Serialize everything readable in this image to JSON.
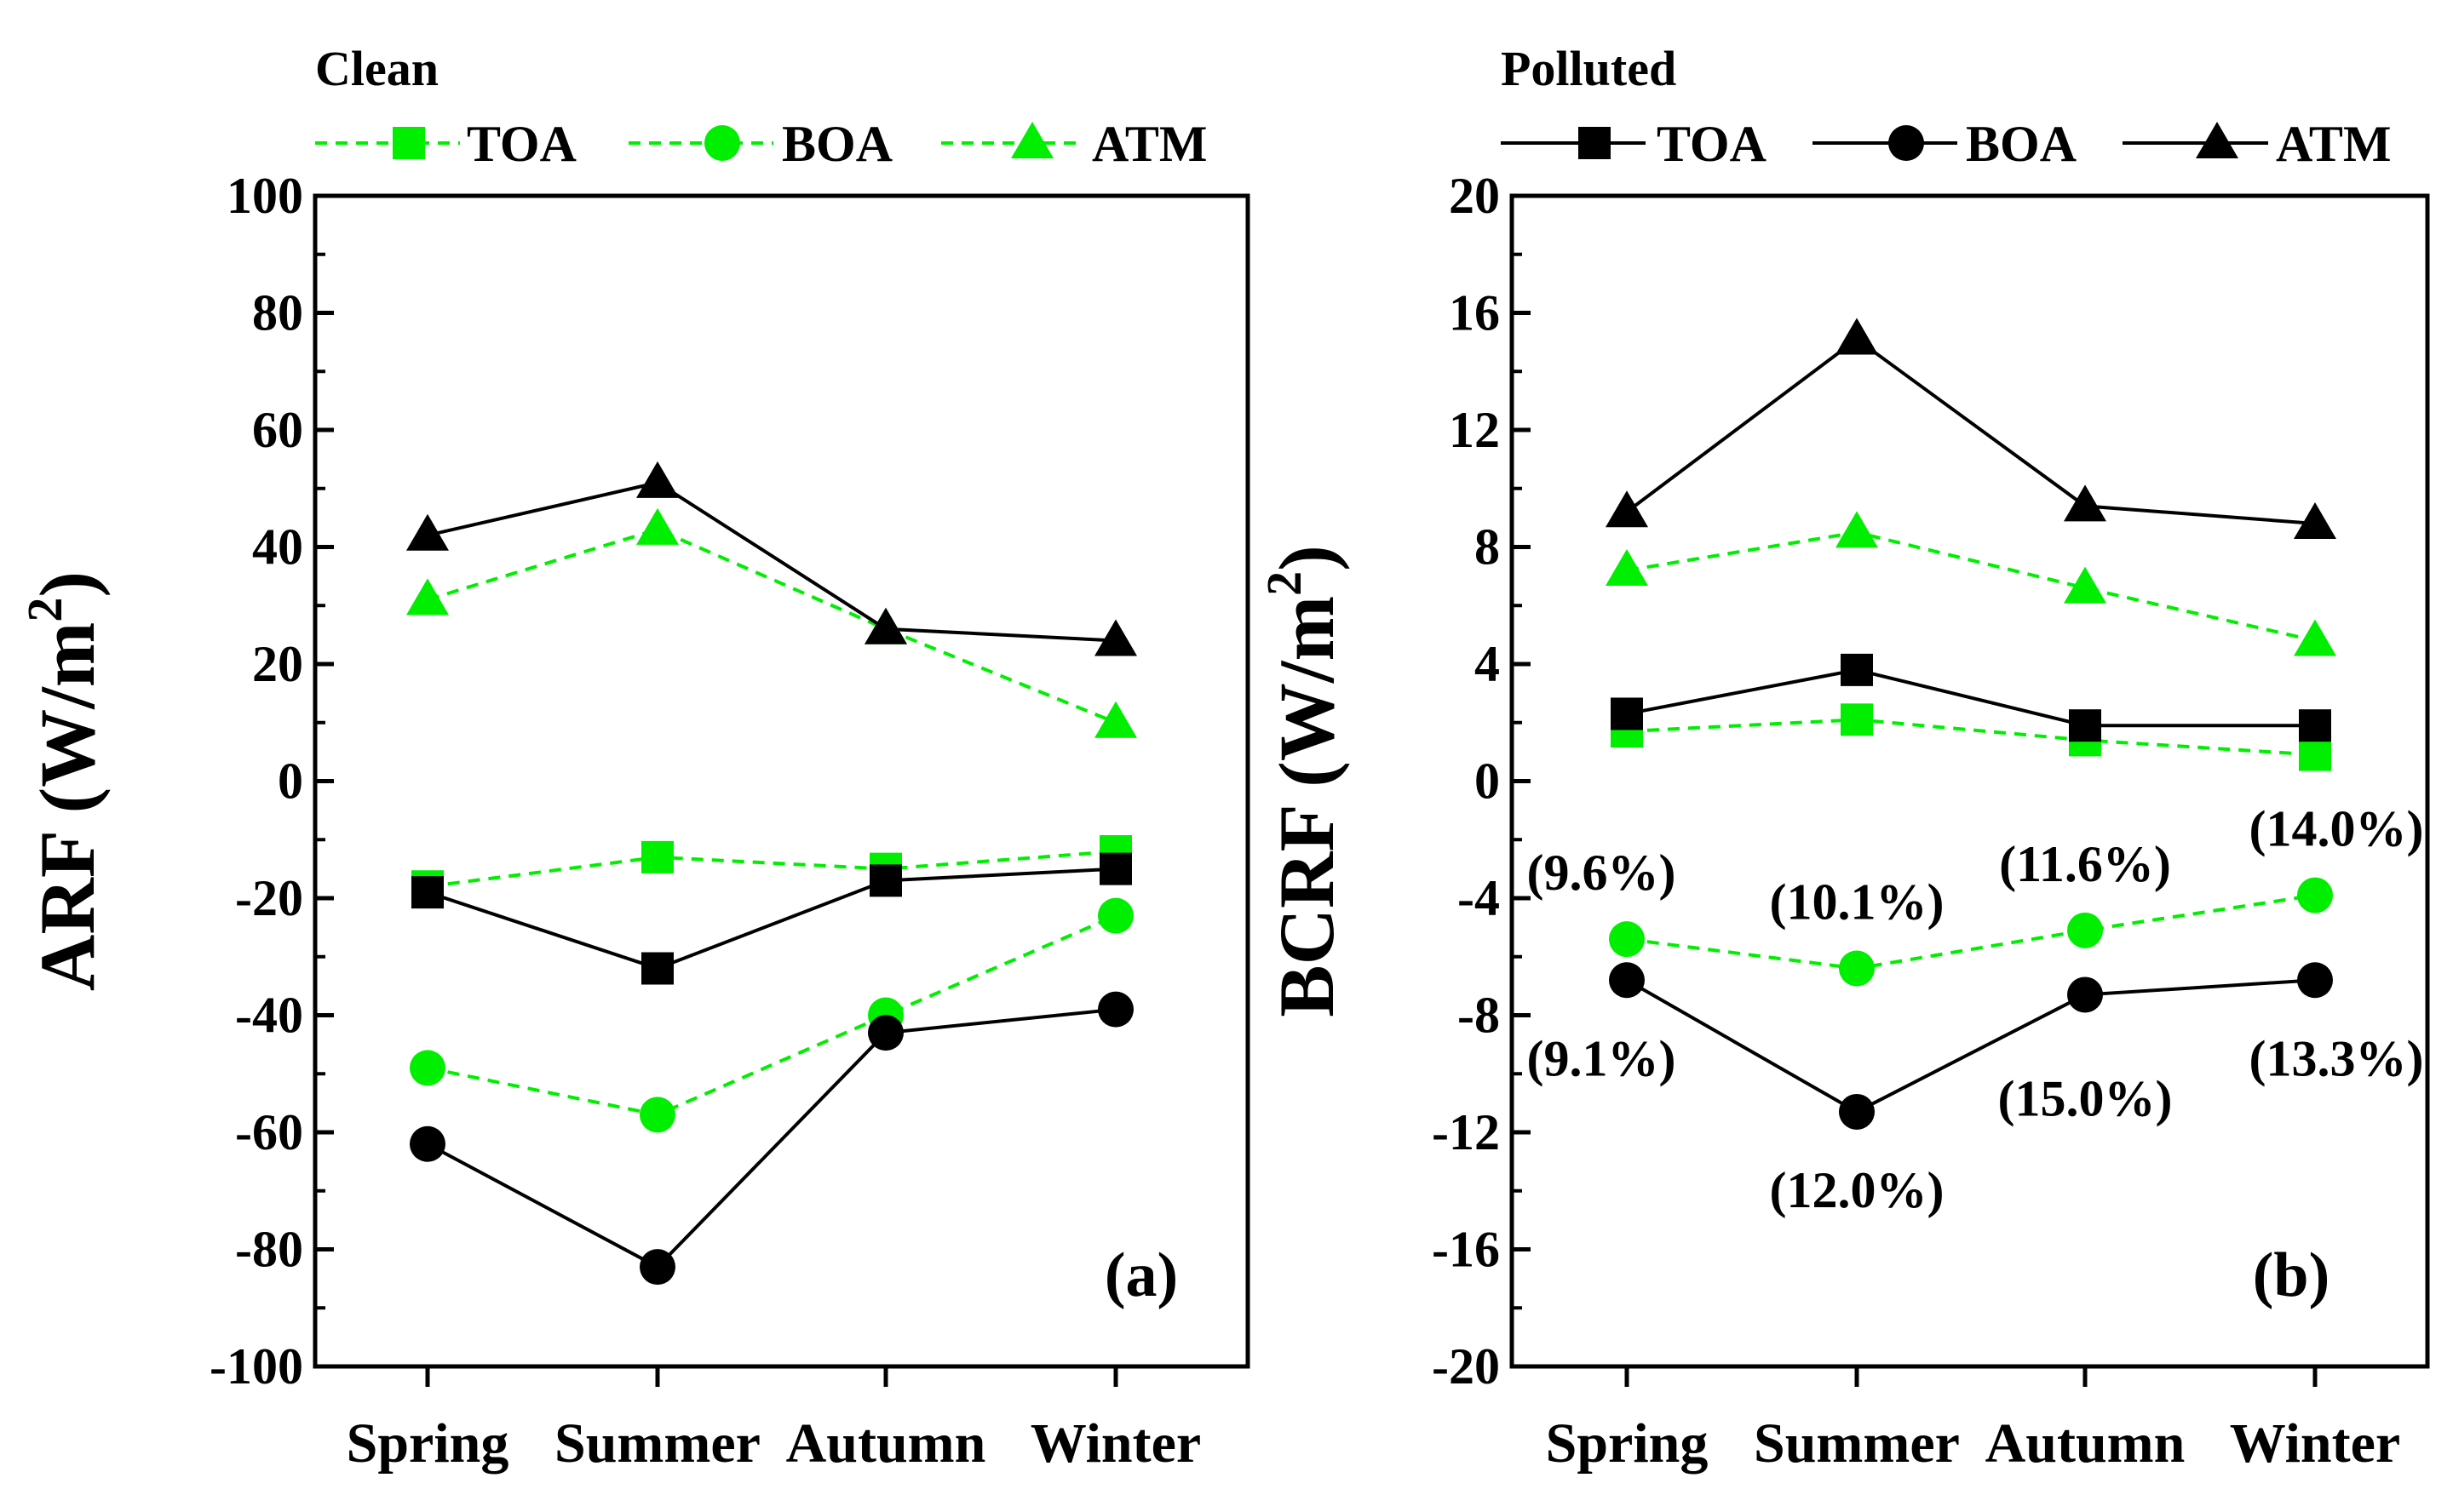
{
  "chart_data": [
    {
      "panel": "(a)",
      "type": "line",
      "title": "Clean",
      "ylabel": "ARF (W/m2)",
      "ylabel_base": "ARF (W/m",
      "ylabel_sup": "2",
      "ylabel_close": ")",
      "ylim": [
        -100,
        100
      ],
      "yticks": [
        "-100",
        "-80",
        "-60",
        "-40",
        "-20",
        "0",
        "20",
        "40",
        "60",
        "80",
        "100"
      ],
      "categories": [
        "Spring",
        "Summer",
        "Autumn",
        "Winter"
      ],
      "legend_title": "Clean",
      "legend": [
        "TOA",
        "BOA",
        "ATM"
      ],
      "legend_style": "clean",
      "series": [
        {
          "name": "TOA",
          "group": "clean",
          "marker": "square",
          "color": "#00ee00",
          "dashed": true,
          "values": [
            -18,
            -13,
            -15,
            -12
          ]
        },
        {
          "name": "BOA",
          "group": "clean",
          "marker": "circle",
          "color": "#00ee00",
          "dashed": true,
          "values": [
            -49,
            -57,
            -40,
            -23
          ]
        },
        {
          "name": "ATM",
          "group": "clean",
          "marker": "triangle",
          "color": "#00ee00",
          "dashed": true,
          "values": [
            31,
            43,
            26,
            10
          ]
        },
        {
          "name": "TOA",
          "group": "polluted",
          "marker": "square",
          "color": "#000000",
          "dashed": false,
          "values": [
            -19,
            -32,
            -17,
            -15
          ]
        },
        {
          "name": "BOA",
          "group": "polluted",
          "marker": "circle",
          "color": "#000000",
          "dashed": false,
          "values": [
            -62,
            -83,
            -43,
            -39
          ]
        },
        {
          "name": "ATM",
          "group": "polluted",
          "marker": "triangle",
          "color": "#000000",
          "dashed": false,
          "values": [
            42,
            51,
            26,
            24
          ]
        }
      ],
      "annotations": []
    },
    {
      "panel": "(b)",
      "type": "line",
      "title": "Polluted",
      "ylabel": "BCRF (W/m2)",
      "ylabel_base": "BCRF (W/m",
      "ylabel_sup": "2",
      "ylabel_close": ")",
      "ylim": [
        -20,
        20
      ],
      "yticks": [
        "-20",
        "-16",
        "-12",
        "-8",
        "-4",
        "0",
        "4",
        "8",
        "12",
        "16",
        "20"
      ],
      "categories": [
        "Spring",
        "Summer",
        "Autumn",
        "Winter"
      ],
      "legend_title": "Polluted",
      "legend": [
        "TOA",
        "BOA",
        "ATM"
      ],
      "legend_style": "polluted",
      "series": [
        {
          "name": "TOA",
          "group": "clean",
          "marker": "square",
          "color": "#00ee00",
          "dashed": true,
          "values": [
            1.7,
            2.1,
            1.4,
            0.9
          ]
        },
        {
          "name": "BOA",
          "group": "clean",
          "marker": "circle",
          "color": "#00ee00",
          "dashed": true,
          "values": [
            -5.4,
            -6.4,
            -5.1,
            -3.9
          ]
        },
        {
          "name": "ATM",
          "group": "clean",
          "marker": "triangle",
          "color": "#00ee00",
          "dashed": true,
          "values": [
            7.2,
            8.5,
            6.6,
            4.8
          ]
        },
        {
          "name": "TOA",
          "group": "polluted",
          "marker": "square",
          "color": "#000000",
          "dashed": false,
          "values": [
            2.3,
            3.8,
            1.9,
            1.9
          ]
        },
        {
          "name": "BOA",
          "group": "polluted",
          "marker": "circle",
          "color": "#000000",
          "dashed": false,
          "values": [
            -6.8,
            -11.3,
            -7.3,
            -6.8
          ]
        },
        {
          "name": "ATM",
          "group": "polluted",
          "marker": "triangle",
          "color": "#000000",
          "dashed": false,
          "values": [
            9.2,
            15.1,
            9.4,
            8.8
          ]
        }
      ],
      "annotations": [
        {
          "text": "(9.6%)",
          "category": "Spring",
          "series": "BOA-clean",
          "placement": "above"
        },
        {
          "text": "(10.1%)",
          "category": "Summer",
          "series": "BOA-clean",
          "placement": "above"
        },
        {
          "text": "(11.6%)",
          "category": "Autumn",
          "series": "BOA-clean",
          "placement": "above"
        },
        {
          "text": "(14.0%)",
          "category": "Winter",
          "series": "BOA-clean",
          "placement": "above"
        },
        {
          "text": "(9.1%)",
          "category": "Spring",
          "series": "BOA-polluted",
          "placement": "below"
        },
        {
          "text": "(12.0%)",
          "category": "Summer",
          "series": "BOA-polluted",
          "placement": "below"
        },
        {
          "text": "(15.0%)",
          "category": "Autumn",
          "series": "BOA-polluted",
          "placement": "below"
        },
        {
          "text": "(13.3%)",
          "category": "Winter",
          "series": "BOA-polluted",
          "placement": "below"
        }
      ]
    }
  ]
}
